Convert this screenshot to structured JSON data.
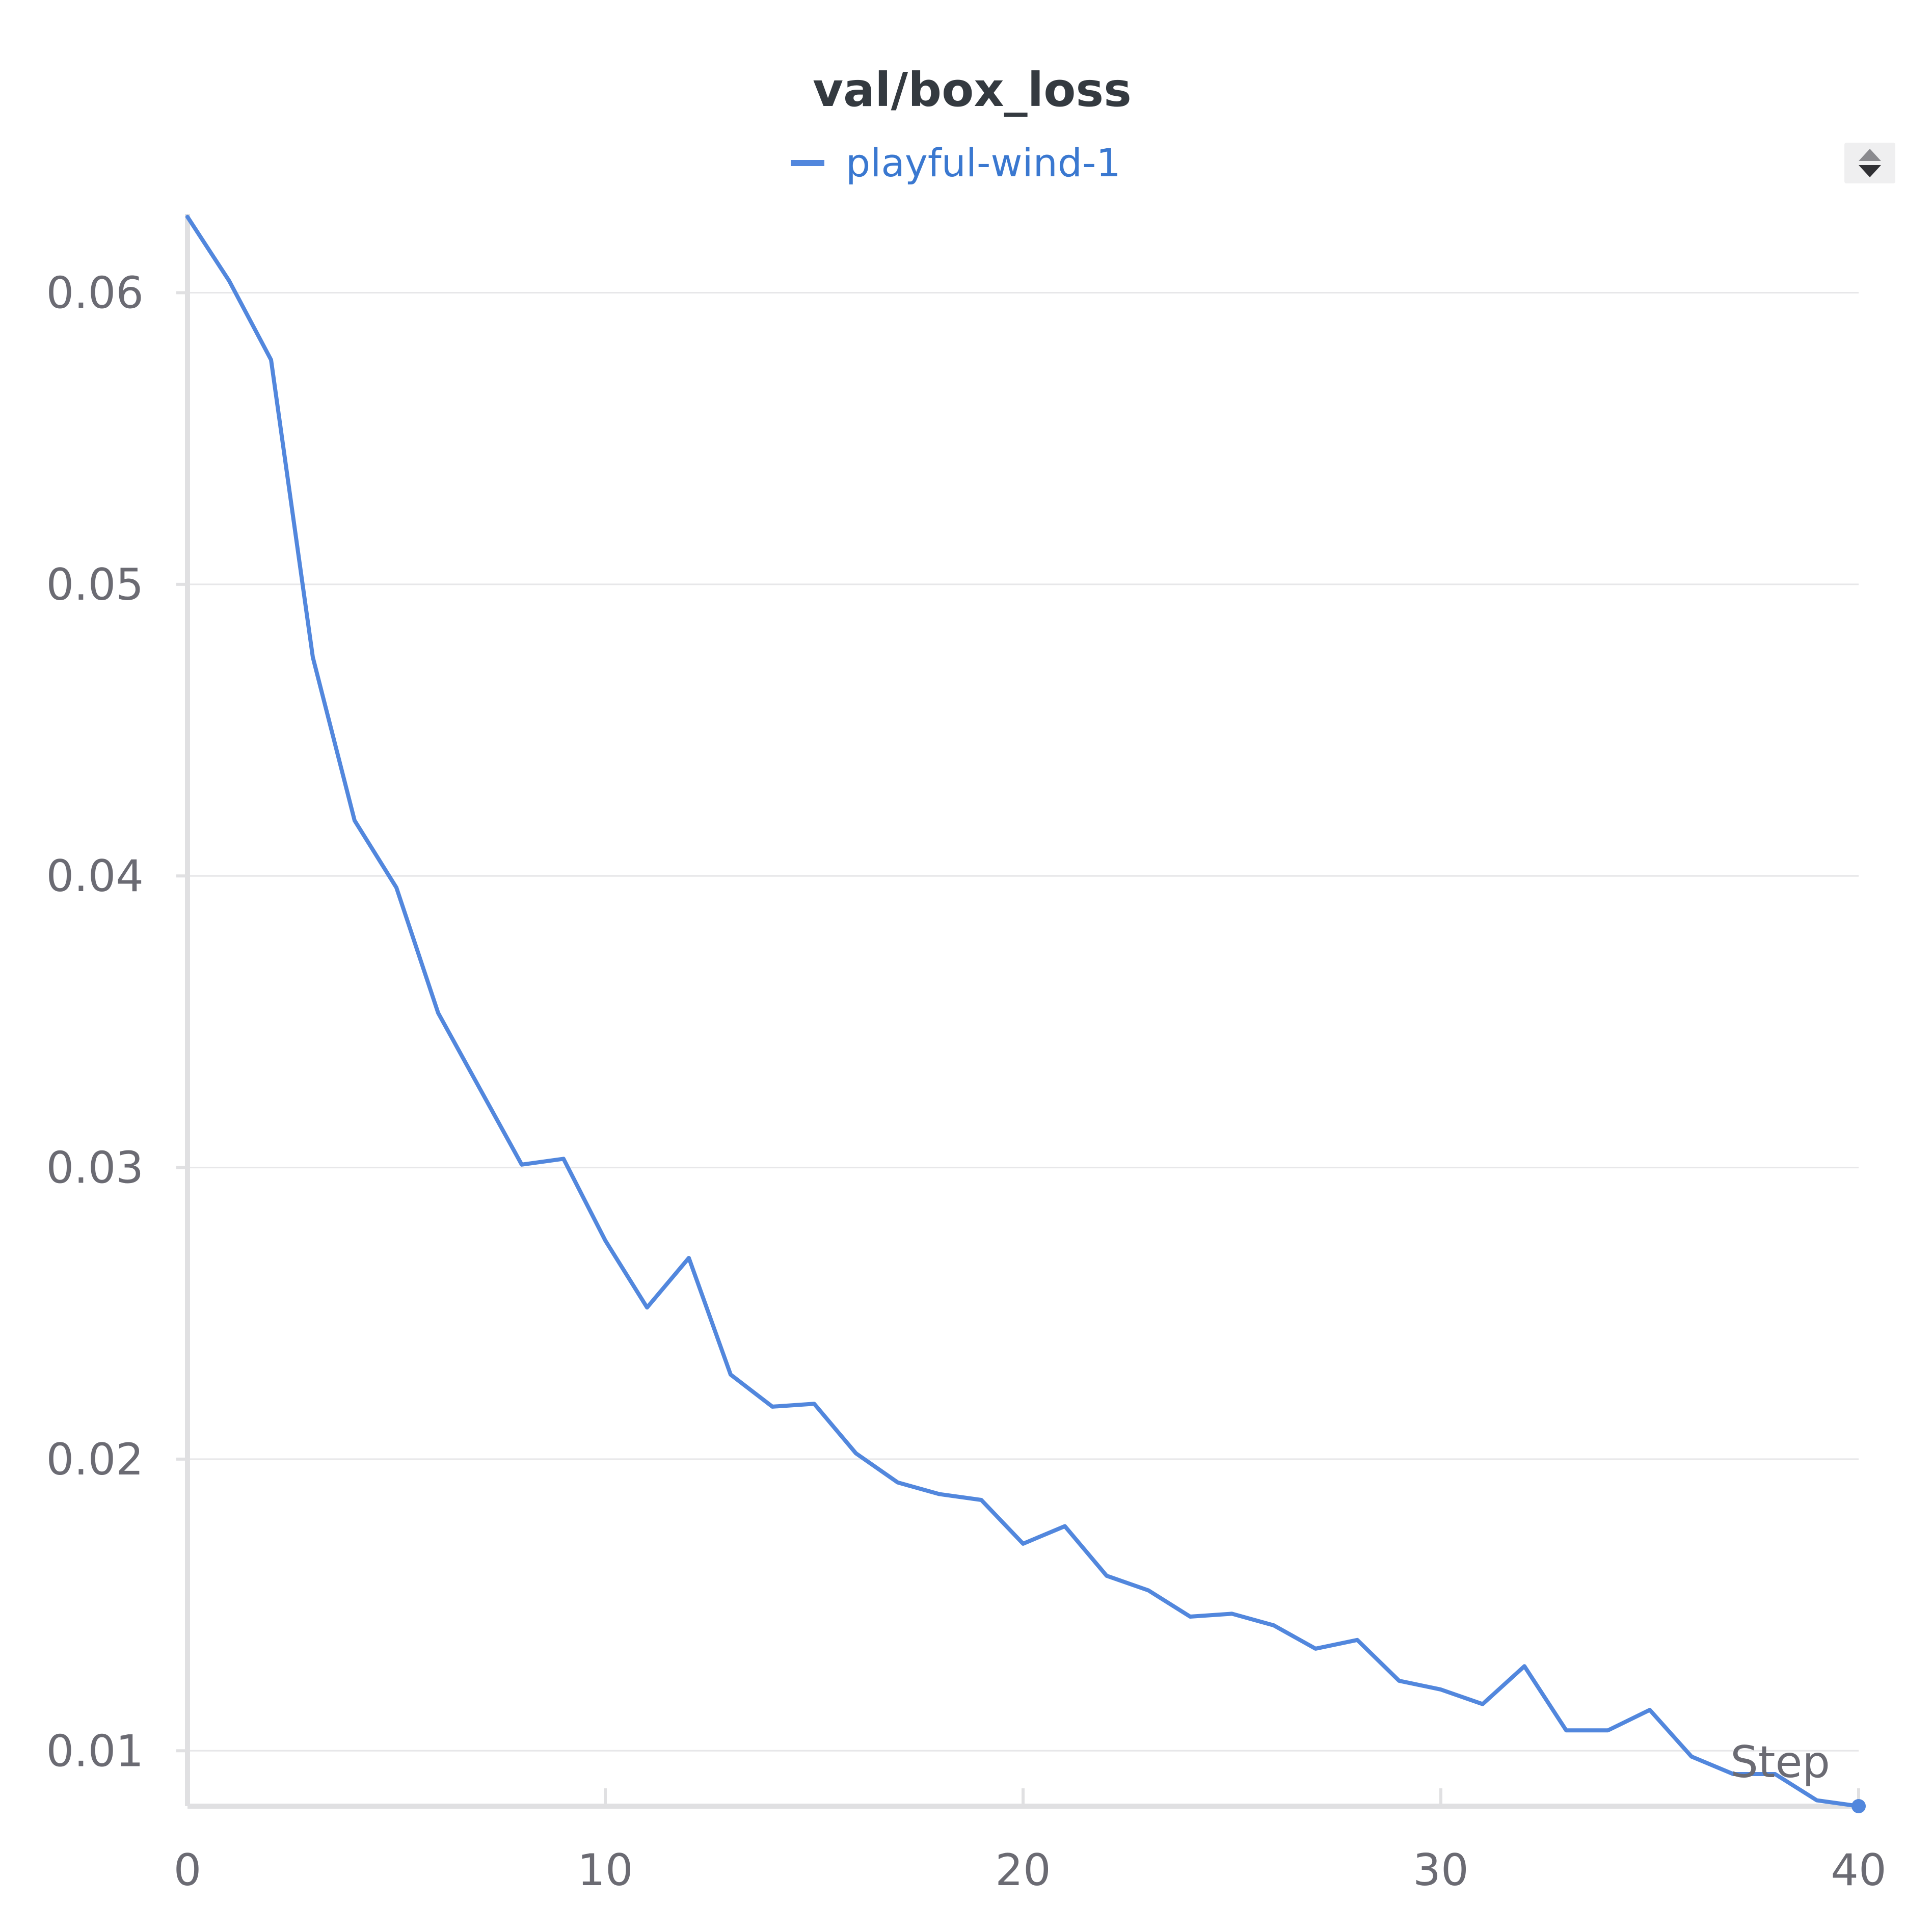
{
  "colors": {
    "series": "#5287dd",
    "legend_text": "#3a78d0",
    "grid": "#e7e7e9",
    "axis": "#e0e0e2",
    "tick_text": "#6b6b73",
    "title_text": "#343a40"
  },
  "controls": {
    "sort_icon": "sort-arrows-icon"
  },
  "chart_data": {
    "type": "line",
    "title": "val/box_loss",
    "xlabel": "Step",
    "ylabel": "",
    "xlim": [
      0,
      40
    ],
    "ylim": [
      0.0081,
      0.0627
    ],
    "grid": true,
    "legend_placement": "top-center",
    "x_ticks": [
      0,
      10,
      20,
      30,
      40
    ],
    "x_tick_labels": [
      "0",
      "10",
      "20",
      "30",
      "40"
    ],
    "y_ticks": [
      0.01,
      0.02,
      0.03,
      0.04,
      0.05,
      0.06
    ],
    "y_tick_labels": [
      "0.01",
      "0.02",
      "0.03",
      "0.04",
      "0.05",
      "0.06"
    ],
    "series": [
      {
        "name": "playful-wind-1",
        "x": [
          0,
          1,
          2,
          3,
          4,
          5,
          6,
          7,
          8,
          9,
          10,
          11,
          12,
          13,
          14,
          15,
          16,
          17,
          18,
          19,
          20,
          21,
          22,
          23,
          24,
          25,
          26,
          27,
          28,
          29,
          30,
          31,
          32,
          33,
          34,
          35,
          36,
          37,
          38,
          39,
          40
        ],
        "values": [
          0.0626,
          0.0604,
          0.0577,
          0.0475,
          0.0419,
          0.0396,
          0.0353,
          0.0327,
          0.0301,
          0.0303,
          0.0275,
          0.0252,
          0.0269,
          0.0229,
          0.0218,
          0.0219,
          0.0202,
          0.0192,
          0.0188,
          0.0186,
          0.0171,
          0.0177,
          0.016,
          0.0155,
          0.0146,
          0.0147,
          0.0143,
          0.0135,
          0.0138,
          0.0124,
          0.0121,
          0.0116,
          0.0129,
          0.0107,
          0.0107,
          0.0114,
          0.0098,
          0.0092,
          0.0092,
          0.0083,
          0.0081
        ]
      }
    ]
  }
}
